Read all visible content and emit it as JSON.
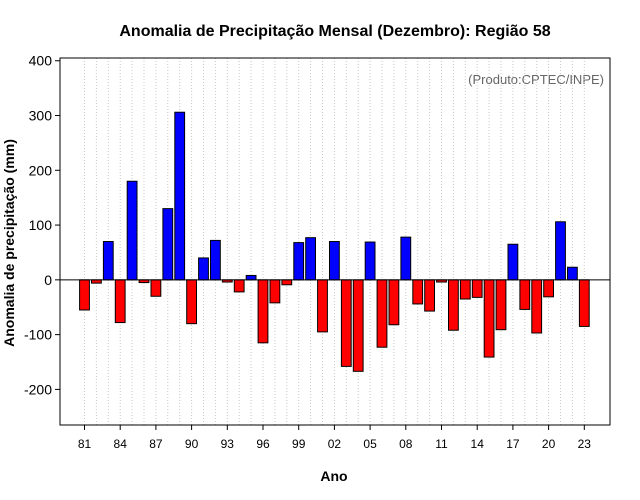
{
  "chart_data": {
    "type": "bar",
    "title": "Anomalia de Precipitação Mensal (Dezembro): Região 58",
    "xlabel": "Ano",
    "ylabel": "Anomalia de precipitação (mm)",
    "credit": "(Produto:CPTEC/INPE)",
    "ylim": [
      -265,
      405
    ],
    "yticks": [
      -200,
      -100,
      0,
      100,
      200,
      300,
      400
    ],
    "xticks": [
      {
        "year": 1981,
        "label": "81"
      },
      {
        "year": 1984,
        "label": "84"
      },
      {
        "year": 1987,
        "label": "87"
      },
      {
        "year": 1990,
        "label": "90"
      },
      {
        "year": 1993,
        "label": "93"
      },
      {
        "year": 1996,
        "label": "96"
      },
      {
        "year": 1999,
        "label": "99"
      },
      {
        "year": 2002,
        "label": "02"
      },
      {
        "year": 2005,
        "label": "05"
      },
      {
        "year": 2008,
        "label": "08"
      },
      {
        "year": 2011,
        "label": "11"
      },
      {
        "year": 2014,
        "label": "14"
      },
      {
        "year": 2017,
        "label": "17"
      },
      {
        "year": 2020,
        "label": "20"
      },
      {
        "year": 2023,
        "label": "23"
      }
    ],
    "years": [
      1981,
      1982,
      1983,
      1984,
      1985,
      1986,
      1987,
      1988,
      1989,
      1990,
      1991,
      1992,
      1993,
      1994,
      1995,
      1996,
      1997,
      1998,
      1999,
      2000,
      2001,
      2002,
      2003,
      2004,
      2005,
      2006,
      2007,
      2008,
      2009,
      2010,
      2011,
      2012,
      2013,
      2014,
      2015,
      2016,
      2017,
      2018,
      2019,
      2020,
      2021,
      2022,
      2023
    ],
    "values": [
      -55,
      -6,
      70,
      -78,
      180,
      -5,
      -30,
      130,
      306,
      -80,
      40,
      72,
      -4,
      -22,
      8,
      -115,
      -42,
      -9,
      68,
      77,
      -95,
      70,
      -158,
      -167,
      69,
      -123,
      -82,
      78,
      -44,
      -57,
      -4,
      -92,
      -35,
      -32,
      -141,
      -91,
      65,
      -54,
      -97,
      -31,
      106,
      23,
      -85
    ],
    "colors": {
      "positive": "#0000ff",
      "negative": "#ff0000"
    },
    "grid": "vertical dotted per year",
    "legend": "none"
  }
}
